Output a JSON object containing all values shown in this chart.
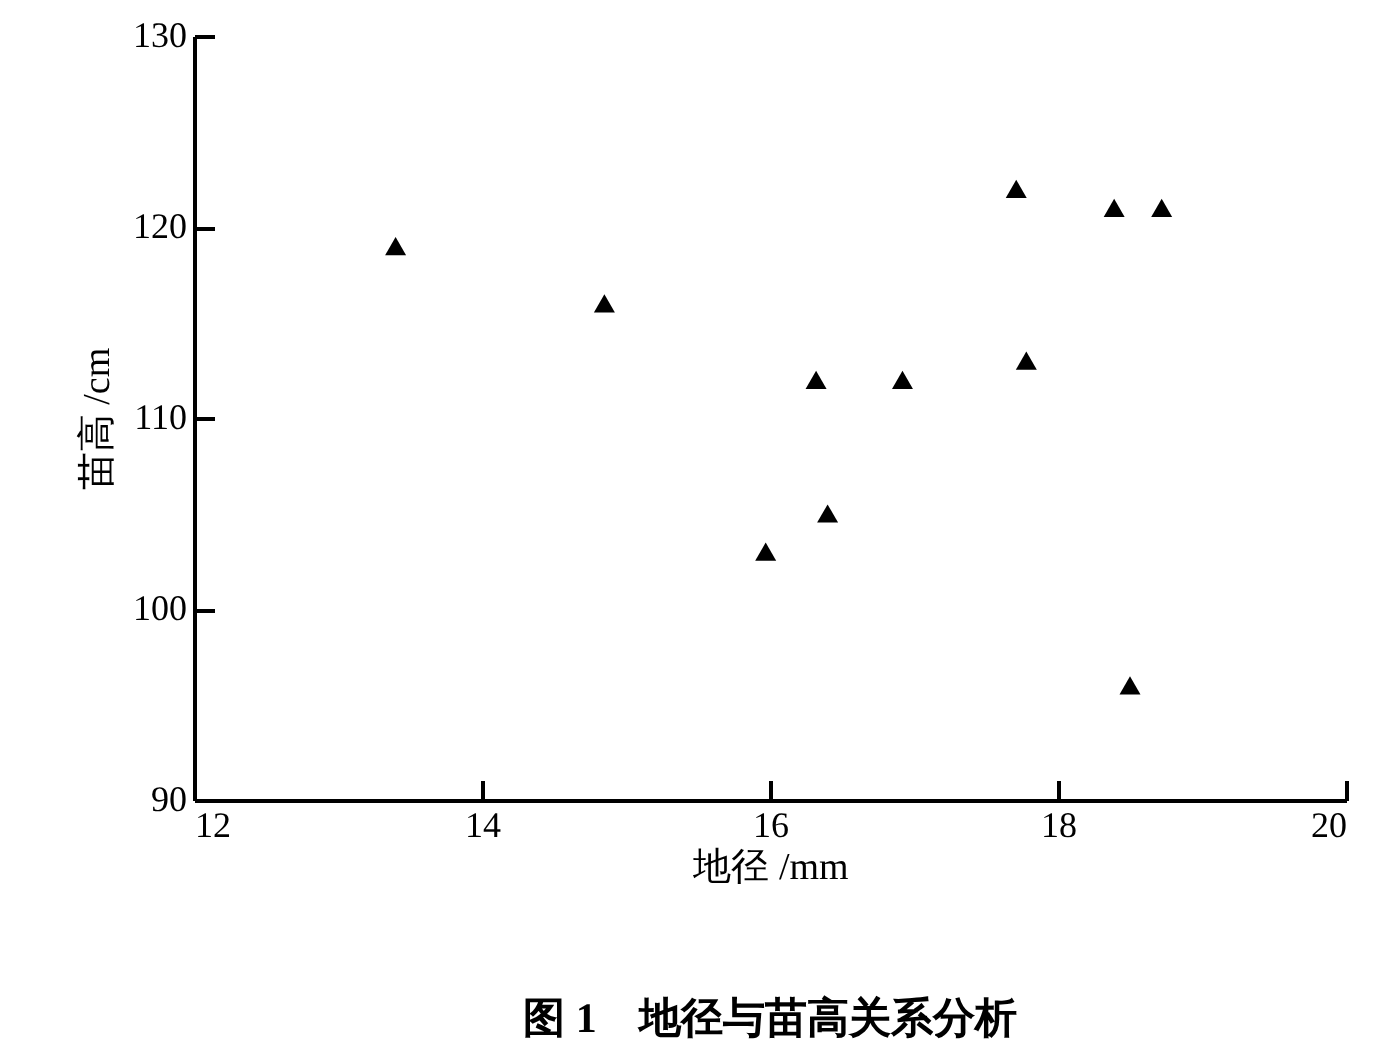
{
  "chart_data": {
    "type": "scatter",
    "title": "图 1　地径与苗高关系分析",
    "xlabel": "地径 /mm",
    "ylabel": "苗高 /cm",
    "x": [
      13.4,
      14.85,
      15.97,
      16.32,
      16.4,
      16.92,
      17.71,
      17.78,
      18.39,
      18.72,
      18.5
    ],
    "values": [
      119,
      116,
      103,
      112,
      105,
      112,
      122,
      113,
      121,
      121,
      96
    ],
    "color": "#000000",
    "marker": "triangle",
    "xlim": [
      12,
      20
    ],
    "xticks": [
      12,
      14,
      16,
      18,
      20
    ],
    "ylim": [
      90,
      130
    ],
    "yticks": [
      90,
      100,
      110,
      120,
      130
    ],
    "grid": false
  }
}
